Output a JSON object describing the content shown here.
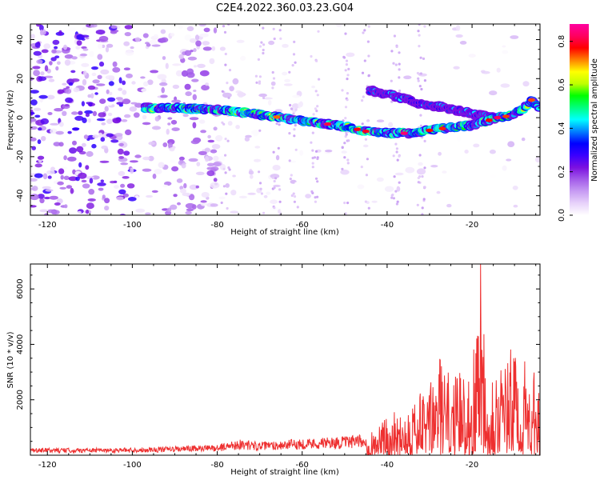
{
  "title": "C2E4.2022.360.03.23.G04",
  "chart_data": [
    {
      "type": "heatmap",
      "xlabel": "Height of straight line (km)",
      "ylabel": "Frequency (Hz)",
      "xlim": [
        -124,
        -4
      ],
      "ylim": [
        -50,
        48
      ],
      "x_ticks": [
        -120,
        -100,
        -80,
        -60,
        -40,
        -20
      ],
      "y_ticks": [
        -40,
        -20,
        0,
        20,
        40
      ],
      "colorbar": {
        "label": "Normalized spectral amplitude",
        "range": [
          0,
          0.88
        ],
        "ticks": [
          0.0,
          0.2,
          0.4,
          0.6,
          0.8
        ],
        "colors": [
          "#ffffff",
          "#e7d2fa",
          "#c79cf3",
          "#a35be9",
          "#7b10e0",
          "#3a00ff",
          "#0000ff",
          "#0080ff",
          "#00ffff",
          "#00ff7f",
          "#00ff00",
          "#bfff00",
          "#ffff00",
          "#ff8000",
          "#ff0000",
          "#ff0060",
          "#ff00a0"
        ]
      },
      "main_track": [
        {
          "x": -97,
          "y": 5
        },
        {
          "x": -90,
          "y": 5
        },
        {
          "x": -85,
          "y": 4.5
        },
        {
          "x": -80,
          "y": 4
        },
        {
          "x": -75,
          "y": 3
        },
        {
          "x": -70,
          "y": 1.5
        },
        {
          "x": -65,
          "y": 0
        },
        {
          "x": -60,
          "y": -1.5
        },
        {
          "x": -55,
          "y": -3
        },
        {
          "x": -50,
          "y": -4.5
        },
        {
          "x": -45,
          "y": -7
        },
        {
          "x": -40,
          "y": -8
        },
        {
          "x": -35,
          "y": -8
        },
        {
          "x": -30,
          "y": -6.5
        },
        {
          "x": -25,
          "y": -5
        },
        {
          "x": -20,
          "y": -4
        },
        {
          "x": -17,
          "y": -2
        },
        {
          "x": -14,
          "y": 0
        },
        {
          "x": -11,
          "y": 1
        },
        {
          "x": -8,
          "y": 4
        },
        {
          "x": -6,
          "y": 9
        },
        {
          "x": -4,
          "y": 5
        }
      ],
      "secondary_track": [
        {
          "x": -44,
          "y": 14
        },
        {
          "x": -38,
          "y": 11
        },
        {
          "x": -32,
          "y": 7
        },
        {
          "x": -26,
          "y": 5
        },
        {
          "x": -20,
          "y": 2
        },
        {
          "x": -15,
          "y": 0
        }
      ]
    },
    {
      "type": "line",
      "xlabel": "Height of straight line (km)",
      "ylabel": "SNR (10 * v/v)",
      "xlim": [
        -124,
        -4
      ],
      "ylim": [
        0,
        6900
      ],
      "x_ticks": [
        -120,
        -100,
        -80,
        -60,
        -40,
        -20
      ],
      "y_ticks": [
        2000,
        4000,
        6000
      ],
      "color": "#ee3030",
      "envelope": [
        {
          "x": -124,
          "y": 250
        },
        {
          "x": -110,
          "y": 260
        },
        {
          "x": -100,
          "y": 270
        },
        {
          "x": -90,
          "y": 320
        },
        {
          "x": -80,
          "y": 380
        },
        {
          "x": -75,
          "y": 580
        },
        {
          "x": -70,
          "y": 480
        },
        {
          "x": -60,
          "y": 600
        },
        {
          "x": -50,
          "y": 680
        },
        {
          "x": -45,
          "y": 750
        },
        {
          "x": -40,
          "y": 1400
        },
        {
          "x": -35,
          "y": 2000
        },
        {
          "x": -30,
          "y": 2500
        },
        {
          "x": -28,
          "y": 3800
        },
        {
          "x": -25,
          "y": 2800
        },
        {
          "x": -20,
          "y": 3300
        },
        {
          "x": -18,
          "y": 6900
        },
        {
          "x": -16,
          "y": 3500
        },
        {
          "x": -12,
          "y": 3500
        },
        {
          "x": -10,
          "y": 4200
        },
        {
          "x": -7,
          "y": 3200
        },
        {
          "x": -4,
          "y": 2800
        }
      ]
    }
  ]
}
